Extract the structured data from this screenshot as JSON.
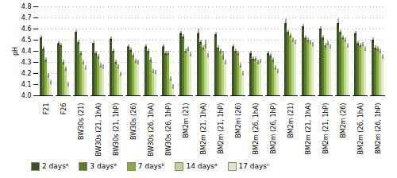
{
  "chart_data": {
    "type": "bar",
    "categories": [
      "F21",
      "F26",
      "BW30s (21)",
      "BW30s (21, 1hA)",
      "BW30s (21, 1hP)",
      "BW30s (26)",
      "BW30s (26, 1hA)",
      "BW30s (26, 1hP)",
      "BM2m (21)",
      "BM2m (21, 1hA)",
      "BM2m (21, 1hP)",
      "BM2m (26)",
      "BM2m (26, 1hA)",
      "BM2m (26, 1hP)",
      "BM2m (21)",
      "BM2m (21, 1hA)",
      "BM2m (21, 1hP)",
      "BM2m (26)",
      "BM2m (26, 1hA)",
      "BM2m (26, 1hP)"
    ],
    "series": [
      {
        "name": "2 daysᵃ",
        "color": "#3a5320",
        "values": [
          4.52,
          4.47,
          4.57,
          4.47,
          4.51,
          4.44,
          4.44,
          4.44,
          4.56,
          4.56,
          4.55,
          4.44,
          4.38,
          4.38,
          4.65,
          4.62,
          4.6,
          4.65,
          4.56,
          4.5
        ],
        "errors": [
          0.02,
          0.02,
          0.02,
          0.02,
          0.02,
          0.02,
          0.02,
          0.02,
          0.02,
          0.04,
          0.02,
          0.02,
          0.02,
          0.02,
          0.04,
          0.02,
          0.02,
          0.04,
          0.02,
          0.02
        ]
      },
      {
        "name": "3 daysᵃ",
        "color": "#5a7a2a",
        "values": [
          4.42,
          4.45,
          4.48,
          4.38,
          4.4,
          4.41,
          4.4,
          4.38,
          4.53,
          4.48,
          4.43,
          4.4,
          4.33,
          4.36,
          4.57,
          4.52,
          4.52,
          4.57,
          4.47,
          4.43
        ],
        "errors": [
          0.02,
          0.02,
          0.02,
          0.02,
          0.02,
          0.02,
          0.02,
          0.02,
          0.02,
          0.02,
          0.02,
          0.02,
          0.02,
          0.02,
          0.02,
          0.02,
          0.02,
          0.02,
          0.02,
          0.02
        ]
      },
      {
        "name": "7 daysᵇ",
        "color": "#8aac3a",
        "values": [
          4.32,
          4.3,
          4.38,
          4.35,
          4.3,
          4.36,
          4.32,
          4.38,
          4.4,
          4.43,
          4.4,
          4.38,
          4.33,
          4.32,
          4.54,
          4.5,
          4.45,
          4.52,
          4.45,
          4.42
        ],
        "errors": [
          0.02,
          0.02,
          0.02,
          0.02,
          0.02,
          0.02,
          0.02,
          0.02,
          0.02,
          0.02,
          0.02,
          0.02,
          0.02,
          0.02,
          0.02,
          0.02,
          0.02,
          0.02,
          0.02,
          0.02
        ]
      },
      {
        "name": "14 daysᵃ",
        "color": "#bdd490",
        "values": [
          4.18,
          4.24,
          4.3,
          4.27,
          4.26,
          4.31,
          4.22,
          4.15,
          4.42,
          4.46,
          4.36,
          4.27,
          4.3,
          4.25,
          4.5,
          4.48,
          4.47,
          4.5,
          4.46,
          4.4
        ],
        "errors": [
          0.02,
          0.02,
          0.02,
          0.02,
          0.02,
          0.02,
          0.02,
          0.02,
          0.02,
          0.04,
          0.04,
          0.02,
          0.02,
          0.02,
          0.02,
          0.02,
          0.02,
          0.02,
          0.02,
          0.02
        ]
      },
      {
        "name": "17 daysᶜ",
        "color": "#deeac0",
        "values": [
          4.12,
          4.1,
          4.25,
          4.26,
          4.19,
          4.3,
          4.21,
          4.08,
          4.37,
          4.36,
          4.3,
          4.2,
          4.31,
          4.22,
          4.48,
          4.46,
          4.44,
          4.45,
          4.42,
          4.35
        ],
        "errors": [
          0.02,
          0.02,
          0.02,
          0.02,
          0.02,
          0.02,
          0.02,
          0.02,
          0.02,
          0.02,
          0.02,
          0.02,
          0.02,
          0.02,
          0.02,
          0.02,
          0.02,
          0.02,
          0.02,
          0.02
        ]
      }
    ],
    "ylabel": "pH",
    "ylim": [
      4.0,
      4.8
    ],
    "yticks": [
      {
        "value": 4.0,
        "label": "4.0"
      },
      4.1,
      4.2,
      4.3,
      4.4,
      4.5,
      4.6,
      4.7,
      4.8
    ],
    "grid": true,
    "legend": "bottom"
  }
}
